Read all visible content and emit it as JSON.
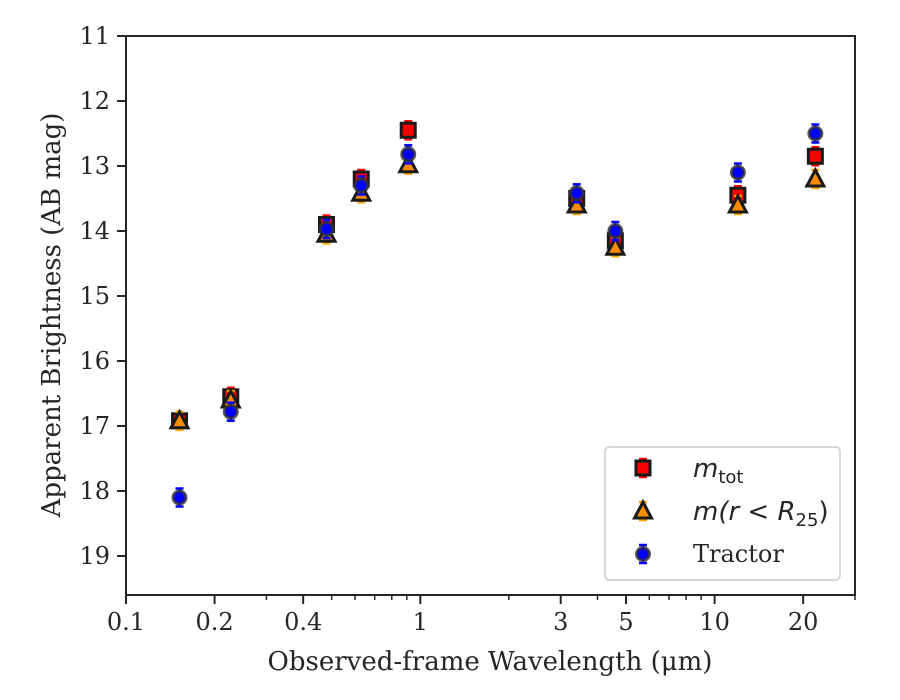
{
  "chart_data": {
    "type": "scatter",
    "xlabel": "Observed-frame Wavelength (μm)",
    "ylabel": "Apparent Brightness (AB mag)",
    "x_scale": "log",
    "xlim": [
      0.1,
      30
    ],
    "ylim": [
      19.6,
      11
    ],
    "y_inverted": true,
    "grid": false,
    "legend_position": "bottom-right",
    "x_ticks": [
      {
        "value": 0.1,
        "label": "0.1"
      },
      {
        "value": 0.2,
        "label": "0.2"
      },
      {
        "value": 0.4,
        "label": "0.4"
      },
      {
        "value": 1,
        "label": "1"
      },
      {
        "value": 3,
        "label": "3"
      },
      {
        "value": 5,
        "label": "5"
      },
      {
        "value": 10,
        "label": "10"
      },
      {
        "value": 20,
        "label": "20"
      }
    ],
    "y_ticks": [
      {
        "value": 11,
        "label": "11"
      },
      {
        "value": 12,
        "label": "12"
      },
      {
        "value": 13,
        "label": "13"
      },
      {
        "value": 14,
        "label": "14"
      },
      {
        "value": 15,
        "label": "15"
      },
      {
        "value": 16,
        "label": "16"
      },
      {
        "value": 17,
        "label": "17"
      },
      {
        "value": 18,
        "label": "18"
      },
      {
        "value": 19,
        "label": "19"
      }
    ],
    "series": [
      {
        "name": "m_tot",
        "legend_label": {
          "main": "m",
          "sub": "tot",
          "rest": ""
        },
        "marker": "square",
        "color": "#ff0000",
        "errorbar_color": "#ff0000",
        "points": [
          {
            "x": 0.152,
            "y": 16.92
          },
          {
            "x": 0.227,
            "y": 16.55
          },
          {
            "x": 0.48,
            "y": 13.9
          },
          {
            "x": 0.63,
            "y": 13.2
          },
          {
            "x": 0.91,
            "y": 12.45
          },
          {
            "x": 3.4,
            "y": 13.5
          },
          {
            "x": 4.6,
            "y": 14.15
          },
          {
            "x": 12.0,
            "y": 13.45
          },
          {
            "x": 22.0,
            "y": 12.85
          }
        ]
      },
      {
        "name": "m(r<R25)",
        "legend_label": {
          "main": "m(r < R",
          "sub": "25",
          "rest": ")"
        },
        "marker": "triangle",
        "color": "#ff8c00",
        "errorbar_color": "#ffa500",
        "points": [
          {
            "x": 0.152,
            "y": 16.92
          },
          {
            "x": 0.227,
            "y": 16.6
          },
          {
            "x": 0.48,
            "y": 14.05
          },
          {
            "x": 0.63,
            "y": 13.42
          },
          {
            "x": 0.91,
            "y": 12.98
          },
          {
            "x": 3.4,
            "y": 13.6
          },
          {
            "x": 4.6,
            "y": 14.25
          },
          {
            "x": 12.0,
            "y": 13.6
          },
          {
            "x": 22.0,
            "y": 13.2
          }
        ]
      },
      {
        "name": "Tractor",
        "legend_label": {
          "main": "Tractor",
          "sub": "",
          "rest": ""
        },
        "marker": "circle",
        "color": "#0000ff",
        "errorbar_color": "#0000ff",
        "points": [
          {
            "x": 0.152,
            "y": 18.1
          },
          {
            "x": 0.227,
            "y": 16.78
          },
          {
            "x": 0.48,
            "y": 13.97
          },
          {
            "x": 0.63,
            "y": 13.3
          },
          {
            "x": 0.91,
            "y": 12.82
          },
          {
            "x": 3.4,
            "y": 13.42
          },
          {
            "x": 4.6,
            "y": 14.0
          },
          {
            "x": 12.0,
            "y": 13.1
          },
          {
            "x": 22.0,
            "y": 12.5
          }
        ]
      }
    ]
  }
}
